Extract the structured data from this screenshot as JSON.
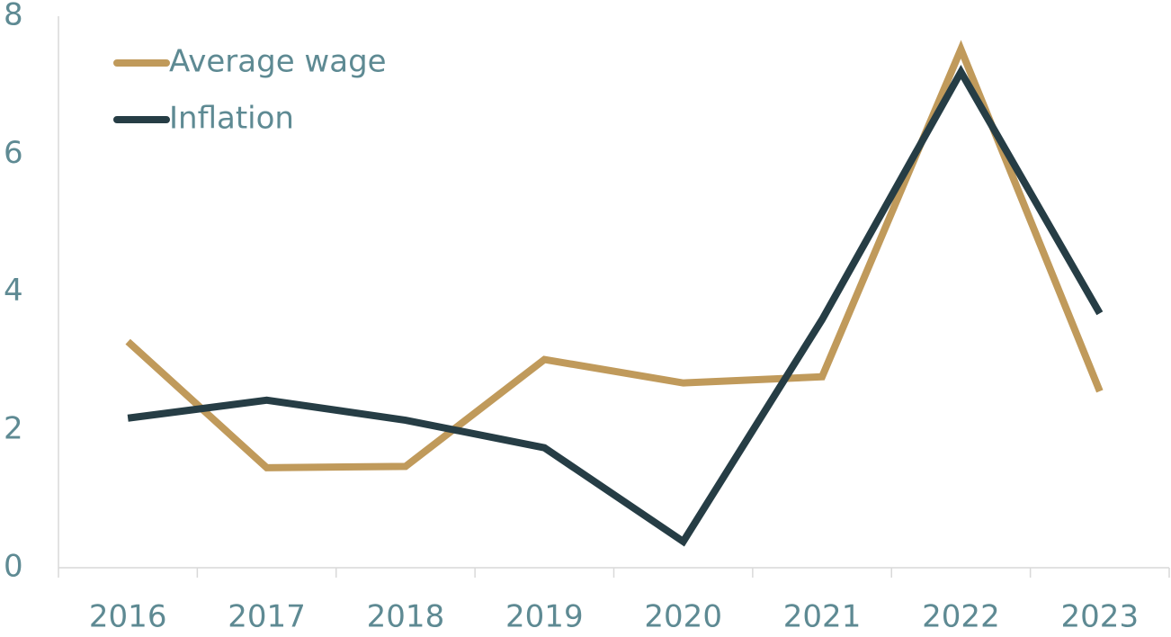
{
  "chart_data": {
    "type": "line",
    "categories": [
      "2016",
      "2017",
      "2018",
      "2019",
      "2020",
      "2021",
      "2022",
      "2023"
    ],
    "series": [
      {
        "name": "Average wage",
        "color": "#c09a5b",
        "values": [
          3.28,
          1.45,
          1.47,
          3.02,
          2.68,
          2.77,
          7.52,
          2.56
        ]
      },
      {
        "name": "Inflation",
        "color": "#263d45",
        "values": [
          2.17,
          2.43,
          2.14,
          1.74,
          0.38,
          3.6,
          7.19,
          3.69
        ]
      }
    ],
    "ylim": [
      0,
      8
    ],
    "yticks": [
      0,
      2,
      4,
      6,
      8
    ],
    "grid": false,
    "legend": "top-left"
  }
}
